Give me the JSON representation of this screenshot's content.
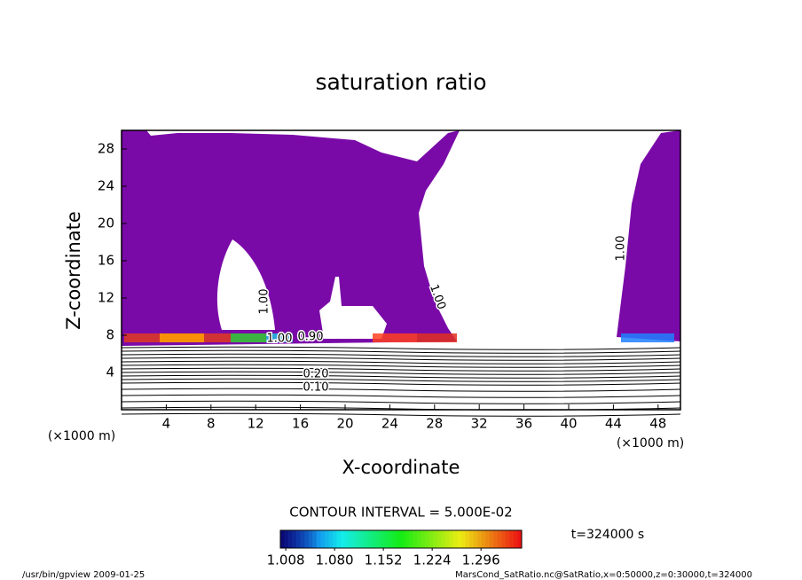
{
  "chart_data": {
    "type": "contour",
    "title": "saturation ratio",
    "x_label": "X-coordinate",
    "y_label": "Z-coordinate",
    "x_unit": "(×1000 m)",
    "y_unit": "(×1000 m)",
    "xlim": [
      0,
      50
    ],
    "ylim": [
      0,
      30
    ],
    "xticks": [
      4,
      8,
      12,
      16,
      20,
      24,
      28,
      32,
      36,
      40,
      44,
      48
    ],
    "yticks": [
      4,
      8,
      12,
      16,
      20,
      24,
      28
    ],
    "contour_labels": [
      {
        "value": 1,
        "label": "1.00"
      },
      {
        "value": 1,
        "label": "1.00"
      },
      {
        "value": 1,
        "label": "1.00"
      },
      {
        "value": 1,
        "label": "1.00"
      },
      {
        "value": 0.9,
        "label": "0.90"
      },
      {
        "value": 0.2,
        "label": "0.20"
      },
      {
        "value": 0.1,
        "label": "0.10"
      }
    ],
    "contour_interval_text": "CONTOUR INTERVAL = 5.000E-02",
    "colorbar_lim": [
      1.0,
      1.356
    ],
    "colorbar_ticks": [
      1.008,
      {
        "value": 1.08,
        "label": "1.080"
      },
      1.152,
      1.224,
      1.296
    ],
    "time_text": "t=324000 s",
    "footer_left": "/usr/bin/gpview  2009-01-25",
    "footer_right": "MarsCond_SatRatio.nc@SatRatio,x=0:50000,z=0:30000,t=324000",
    "fill_color": "#7a0aa8"
  }
}
